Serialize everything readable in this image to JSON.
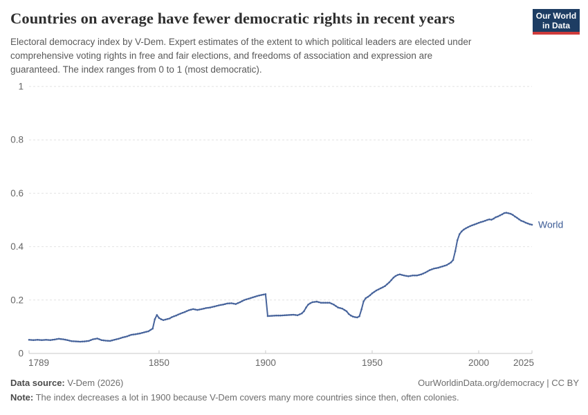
{
  "header": {
    "title": "Countries on average have fewer democratic rights in recent years",
    "subtitle_lines": [
      "Electoral democracy index by V-Dem. Expert estimates of the extent to which political leaders are elected under",
      "comprehensive voting rights in free and fair elections, and freedoms of association and expression are",
      "guaranteed. The index ranges from 0 to 1 (most democratic)."
    ],
    "logo": {
      "line1": "Our World",
      "line2": "in Data"
    }
  },
  "footer": {
    "source_label": "Data source:",
    "source_value": "V-Dem (2026)",
    "attribution": "OurWorldinData.org/democracy | CC BY",
    "note_label": "Note:",
    "note_value": "The index decreases a lot in 1900 because V-Dem covers many more countries since then, often colonies."
  },
  "colors": {
    "line": "#46639b",
    "entity_label": "#3d5c96",
    "grid": "#e2e2e2",
    "axis": "#c9c9c9",
    "tick_label": "#666666",
    "logo_bg": "#1d3d63",
    "logo_stripe": "#cf3b3b"
  },
  "chart_data": {
    "type": "line",
    "title": "Countries on average have fewer democratic rights in recent years",
    "xlabel": "",
    "ylabel": "Electoral democracy index",
    "xlim": [
      1789,
      2025
    ],
    "ylim": [
      0,
      1
    ],
    "grid": true,
    "legend_position": "end-of-line",
    "x_ticks": [
      1789,
      1850,
      1900,
      1950,
      2000,
      2025
    ],
    "x_tick_labels": [
      "1789",
      "1850",
      "1900",
      "1950",
      "2000",
      "2025"
    ],
    "y_ticks": [
      0,
      0.2,
      0.4,
      0.6,
      0.8,
      1
    ],
    "y_tick_labels": [
      "0",
      "0.2",
      "0.4",
      "0.6",
      "0.8",
      "1"
    ],
    "series": [
      {
        "name": "World",
        "points": [
          [
            1789,
            0.051
          ],
          [
            1791,
            0.05
          ],
          [
            1793,
            0.051
          ],
          [
            1795,
            0.05
          ],
          [
            1797,
            0.051
          ],
          [
            1799,
            0.05
          ],
          [
            1801,
            0.052
          ],
          [
            1803,
            0.055
          ],
          [
            1805,
            0.053
          ],
          [
            1807,
            0.05
          ],
          [
            1809,
            0.046
          ],
          [
            1811,
            0.045
          ],
          [
            1813,
            0.044
          ],
          [
            1815,
            0.045
          ],
          [
            1817,
            0.047
          ],
          [
            1819,
            0.053
          ],
          [
            1821,
            0.056
          ],
          [
            1823,
            0.05
          ],
          [
            1825,
            0.048
          ],
          [
            1827,
            0.047
          ],
          [
            1829,
            0.051
          ],
          [
            1831,
            0.055
          ],
          [
            1833,
            0.06
          ],
          [
            1835,
            0.064
          ],
          [
            1837,
            0.07
          ],
          [
            1839,
            0.072
          ],
          [
            1841,
            0.075
          ],
          [
            1843,
            0.079
          ],
          [
            1845,
            0.083
          ],
          [
            1847,
            0.093
          ],
          [
            1848,
            0.128
          ],
          [
            1849,
            0.144
          ],
          [
            1850,
            0.133
          ],
          [
            1851,
            0.128
          ],
          [
            1852,
            0.125
          ],
          [
            1853,
            0.127
          ],
          [
            1854,
            0.129
          ],
          [
            1855,
            0.131
          ],
          [
            1856,
            0.136
          ],
          [
            1858,
            0.142
          ],
          [
            1860,
            0.149
          ],
          [
            1862,
            0.155
          ],
          [
            1864,
            0.162
          ],
          [
            1866,
            0.166
          ],
          [
            1868,
            0.163
          ],
          [
            1870,
            0.166
          ],
          [
            1872,
            0.17
          ],
          [
            1874,
            0.172
          ],
          [
            1876,
            0.176
          ],
          [
            1878,
            0.18
          ],
          [
            1880,
            0.183
          ],
          [
            1882,
            0.187
          ],
          [
            1884,
            0.188
          ],
          [
            1886,
            0.185
          ],
          [
            1888,
            0.192
          ],
          [
            1890,
            0.2
          ],
          [
            1892,
            0.205
          ],
          [
            1894,
            0.21
          ],
          [
            1896,
            0.215
          ],
          [
            1898,
            0.219
          ],
          [
            1900,
            0.222
          ],
          [
            1901,
            0.14
          ],
          [
            1903,
            0.141
          ],
          [
            1905,
            0.142
          ],
          [
            1907,
            0.142
          ],
          [
            1909,
            0.143
          ],
          [
            1911,
            0.144
          ],
          [
            1913,
            0.145
          ],
          [
            1915,
            0.143
          ],
          [
            1917,
            0.15
          ],
          [
            1918,
            0.158
          ],
          [
            1919,
            0.172
          ],
          [
            1920,
            0.183
          ],
          [
            1921,
            0.188
          ],
          [
            1922,
            0.192
          ],
          [
            1924,
            0.194
          ],
          [
            1926,
            0.19
          ],
          [
            1928,
            0.19
          ],
          [
            1930,
            0.19
          ],
          [
            1932,
            0.183
          ],
          [
            1934,
            0.172
          ],
          [
            1936,
            0.168
          ],
          [
            1937,
            0.163
          ],
          [
            1938,
            0.158
          ],
          [
            1939,
            0.148
          ],
          [
            1940,
            0.142
          ],
          [
            1941,
            0.138
          ],
          [
            1942,
            0.136
          ],
          [
            1943,
            0.135
          ],
          [
            1944,
            0.139
          ],
          [
            1945,
            0.165
          ],
          [
            1946,
            0.195
          ],
          [
            1947,
            0.207
          ],
          [
            1948,
            0.212
          ],
          [
            1949,
            0.218
          ],
          [
            1950,
            0.225
          ],
          [
            1952,
            0.236
          ],
          [
            1954,
            0.244
          ],
          [
            1956,
            0.252
          ],
          [
            1958,
            0.266
          ],
          [
            1960,
            0.284
          ],
          [
            1961,
            0.29
          ],
          [
            1962,
            0.294
          ],
          [
            1963,
            0.296
          ],
          [
            1965,
            0.292
          ],
          [
            1967,
            0.289
          ],
          [
            1969,
            0.292
          ],
          [
            1971,
            0.292
          ],
          [
            1973,
            0.296
          ],
          [
            1975,
            0.303
          ],
          [
            1977,
            0.312
          ],
          [
            1979,
            0.318
          ],
          [
            1981,
            0.321
          ],
          [
            1983,
            0.326
          ],
          [
            1985,
            0.331
          ],
          [
            1987,
            0.341
          ],
          [
            1988,
            0.35
          ],
          [
            1989,
            0.383
          ],
          [
            1990,
            0.424
          ],
          [
            1991,
            0.447
          ],
          [
            1992,
            0.457
          ],
          [
            1993,
            0.464
          ],
          [
            1994,
            0.469
          ],
          [
            1995,
            0.473
          ],
          [
            1996,
            0.477
          ],
          [
            1997,
            0.48
          ],
          [
            1998,
            0.483
          ],
          [
            1999,
            0.486
          ],
          [
            2000,
            0.489
          ],
          [
            2001,
            0.492
          ],
          [
            2002,
            0.494
          ],
          [
            2003,
            0.497
          ],
          [
            2004,
            0.5
          ],
          [
            2005,
            0.502
          ],
          [
            2006,
            0.501
          ],
          [
            2007,
            0.505
          ],
          [
            2008,
            0.51
          ],
          [
            2009,
            0.513
          ],
          [
            2010,
            0.517
          ],
          [
            2011,
            0.521
          ],
          [
            2012,
            0.526
          ],
          [
            2013,
            0.527
          ],
          [
            2014,
            0.525
          ],
          [
            2015,
            0.523
          ],
          [
            2016,
            0.519
          ],
          [
            2017,
            0.513
          ],
          [
            2018,
            0.508
          ],
          [
            2019,
            0.502
          ],
          [
            2020,
            0.497
          ],
          [
            2021,
            0.494
          ],
          [
            2022,
            0.49
          ],
          [
            2023,
            0.487
          ],
          [
            2024,
            0.484
          ],
          [
            2025,
            0.482
          ]
        ]
      }
    ]
  }
}
